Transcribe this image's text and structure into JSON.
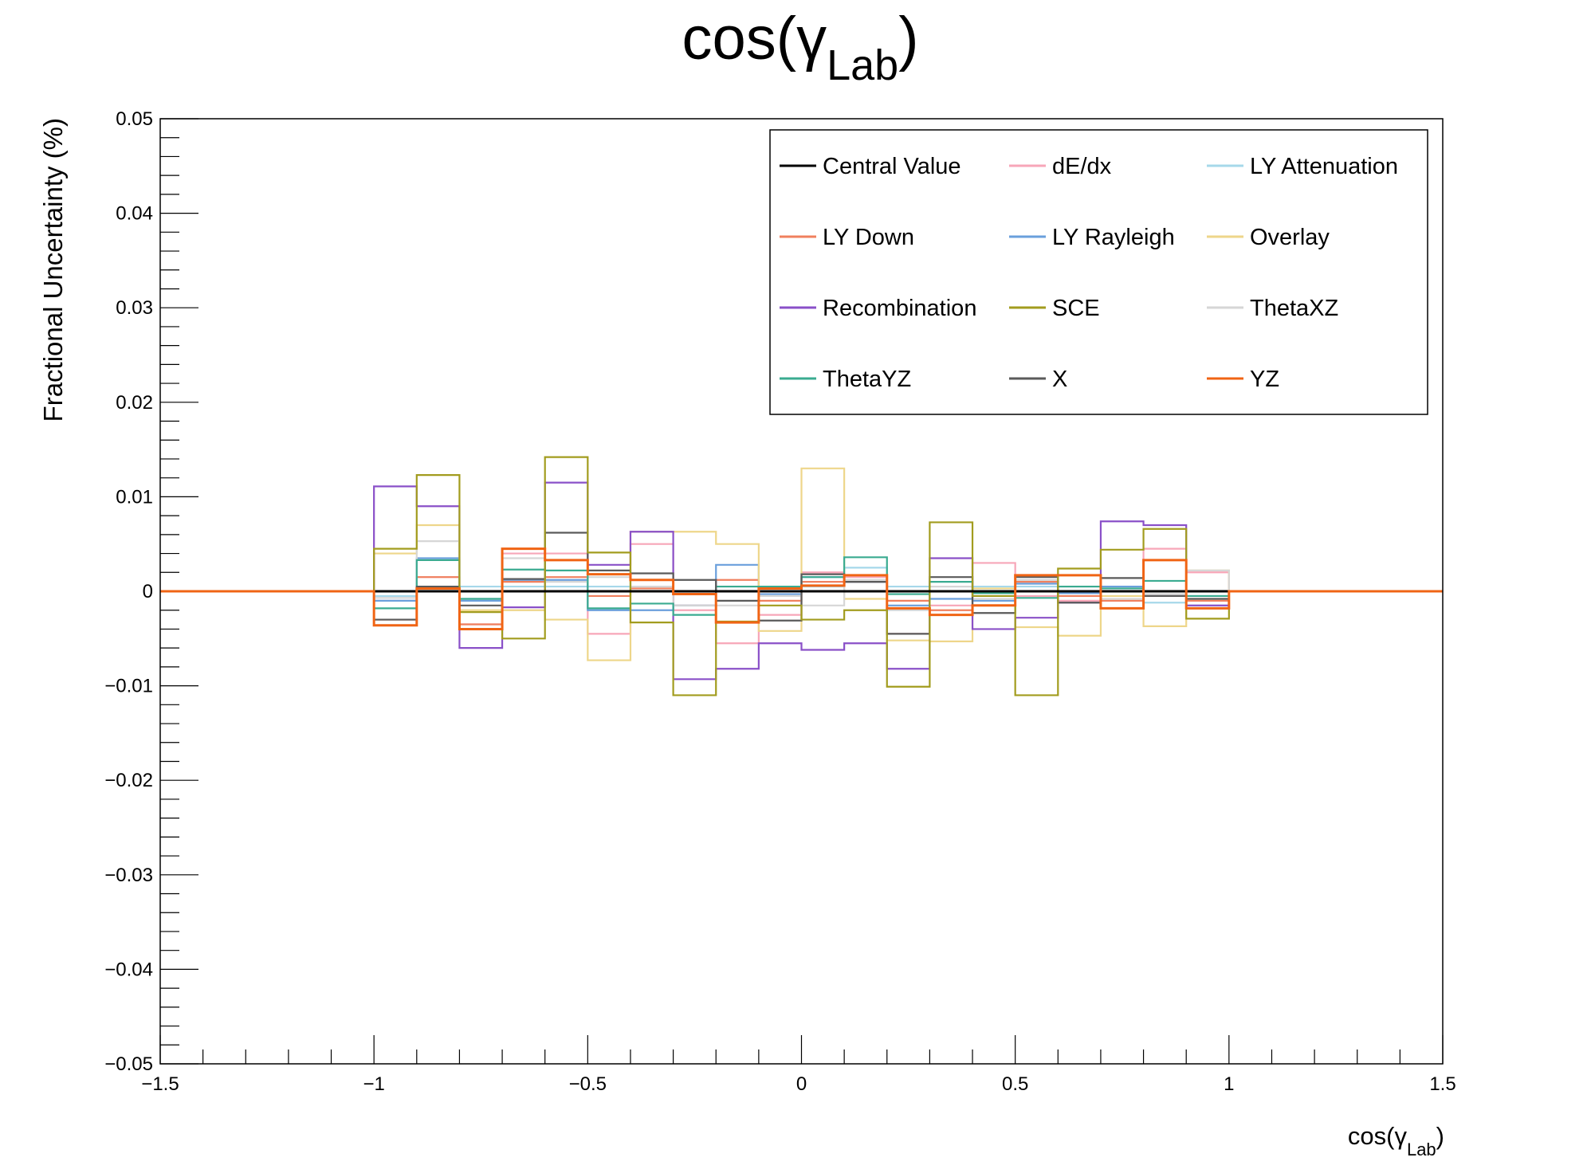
{
  "chart_data": {
    "type": "line",
    "title": {
      "main": "cos(γ",
      "sub": "Lab",
      "close": ")"
    },
    "xlabel": {
      "main": "cos(γ",
      "sub": "Lab",
      "close": ")"
    },
    "ylabel": "Fractional Uncertainty (%)",
    "xlim": [
      -1.5,
      1.5
    ],
    "ylim": [
      -0.05,
      0.05
    ],
    "x_ticks": [
      -1.5,
      -1,
      -0.5,
      0,
      0.5,
      1,
      1.5
    ],
    "x_tick_labels": [
      "−1.5",
      "−1",
      "−0.5",
      "0",
      "0.5",
      "1",
      "1.5"
    ],
    "y_ticks": [
      -0.05,
      -0.04,
      -0.03,
      -0.02,
      -0.01,
      0,
      0.01,
      0.02,
      0.03,
      0.04,
      0.05
    ],
    "y_tick_labels": [
      "−0.05",
      "−0.04",
      "−0.03",
      "−0.02",
      "−0.01",
      "0",
      "0.01",
      "0.02",
      "0.03",
      "0.04",
      "0.05"
    ],
    "grid": false,
    "legend_position": "top-right",
    "bin_edges": [
      -1,
      -0.9,
      -0.8,
      -0.7,
      -0.6,
      -0.5,
      -0.4,
      -0.3,
      -0.2,
      -0.1,
      0,
      0.1,
      0.2,
      0.3,
      0.4,
      0.5,
      0.6,
      0.7,
      0.8,
      0.9,
      1
    ],
    "series": [
      {
        "name": "Central Value",
        "color": "#000000",
        "values": [
          0,
          0,
          0,
          0,
          0,
          0,
          0,
          0,
          0,
          0,
          0,
          0,
          0,
          0,
          0,
          0,
          0,
          0,
          0,
          0
        ]
      },
      {
        "name": "dE/dx",
        "color": "#f7a6b8",
        "values": [
          -0.001,
          0.0015,
          -0.0035,
          0.004,
          0.004,
          -0.0045,
          0.005,
          -0.002,
          -0.0055,
          -0.0025,
          0.002,
          0.0015,
          -0.0045,
          -0.0015,
          0.003,
          -0.0005,
          -0.001,
          0.0005,
          0.0045,
          0.002
        ]
      },
      {
        "name": "LY Attenuation",
        "color": "#a6d8ea",
        "values": [
          -0.0005,
          0.0005,
          0.0005,
          0.0005,
          0.0005,
          0.0005,
          0.0003,
          -0.0003,
          0.0005,
          0.0005,
          0.0005,
          0.0025,
          0.0005,
          0.0005,
          0.0005,
          0.0005,
          0.0005,
          0.0005,
          -0.0012,
          -0.0005
        ]
      },
      {
        "name": "LY Down",
        "color": "#f0805e",
        "values": [
          -0.003,
          0.0015,
          -0.0035,
          0.001,
          0.0015,
          -0.0005,
          0.0003,
          -0.0015,
          0.0012,
          -0.001,
          0.001,
          0.001,
          -0.001,
          -0.002,
          -0.0015,
          0.001,
          -0.0005,
          -0.001,
          -0.0005,
          -0.001
        ]
      },
      {
        "name": "LY Rayleigh",
        "color": "#6a9fdc",
        "values": [
          -0.001,
          0.0035,
          -0.001,
          0.0012,
          0.0012,
          -0.002,
          -0.002,
          -0.0015,
          0.0028,
          -0.0003,
          0.0015,
          0.001,
          -0.0015,
          -0.0008,
          -0.001,
          0.0008,
          -0.0002,
          0.0005,
          -0.0005,
          -0.0015
        ]
      },
      {
        "name": "Overlay",
        "color": "#eed68a",
        "values": [
          0.004,
          0.007,
          -0.002,
          -0.002,
          -0.003,
          -0.0073,
          0.0063,
          0.0063,
          0.005,
          -0.0042,
          0.013,
          -0.0008,
          -0.0052,
          -0.0053,
          0.0003,
          -0.0038,
          -0.0047,
          -0.0005,
          -0.0037,
          0.0022
        ]
      },
      {
        "name": "Recombination",
        "color": "#8a50c8",
        "values": [
          0.0111,
          0.009,
          -0.006,
          -0.0017,
          0.0115,
          0.0028,
          0.0063,
          -0.0093,
          -0.0082,
          -0.0055,
          -0.0062,
          -0.0055,
          -0.0082,
          0.0035,
          -0.004,
          -0.0028,
          -0.0012,
          0.0074,
          0.007,
          -0.0015
        ]
      },
      {
        "name": "SCE",
        "color": "#a29c1e",
        "values": [
          0.0045,
          0.0123,
          -0.0022,
          -0.005,
          0.0142,
          0.0041,
          -0.0033,
          -0.011,
          -0.0032,
          -0.0015,
          -0.003,
          -0.002,
          -0.0101,
          0.0073,
          -0.0005,
          -0.011,
          0.0024,
          0.0044,
          0.0066,
          -0.0029
        ]
      },
      {
        "name": "ThetaXZ",
        "color": "#d6d6d6",
        "values": [
          -0.0007,
          0.0053,
          -0.0008,
          0.0035,
          0.001,
          0.0015,
          0.0005,
          -0.0015,
          -0.0015,
          -0.0005,
          -0.0015,
          0.0012,
          -0.002,
          0.0005,
          -0.0008,
          0.0012,
          0.0005,
          -0.0008,
          -0.0003,
          0.0022
        ]
      },
      {
        "name": "ThetaYZ",
        "color": "#3aab90",
        "values": [
          -0.0018,
          0.0033,
          -0.0008,
          0.0023,
          0.0022,
          -0.0018,
          -0.0013,
          -0.0025,
          0.0005,
          0.0005,
          0.0015,
          0.0036,
          -0.0003,
          0.001,
          -0.0002,
          -0.0007,
          0.0005,
          0.0003,
          0.0011,
          -0.0005
        ]
      },
      {
        "name": "X",
        "color": "#5a5a5a",
        "values": [
          -0.003,
          0.0005,
          -0.0015,
          0.0013,
          0.0062,
          0.0022,
          0.0019,
          0.0012,
          -0.001,
          -0.0031,
          0.0018,
          0.001,
          -0.0045,
          0.0015,
          -0.0023,
          0.0015,
          -0.0012,
          0.0014,
          -0.0005,
          -0.0008
        ]
      },
      {
        "name": "YZ",
        "color": "#f06414",
        "values": [
          -0.0036,
          0.0003,
          -0.004,
          0.0045,
          0.0033,
          0.0018,
          0.0012,
          -0.0003,
          -0.0033,
          0.0003,
          0.0006,
          0.0017,
          -0.0018,
          -0.0025,
          -0.0015,
          0.0017,
          0.0017,
          -0.0018,
          0.0033,
          -0.0018
        ]
      }
    ]
  }
}
